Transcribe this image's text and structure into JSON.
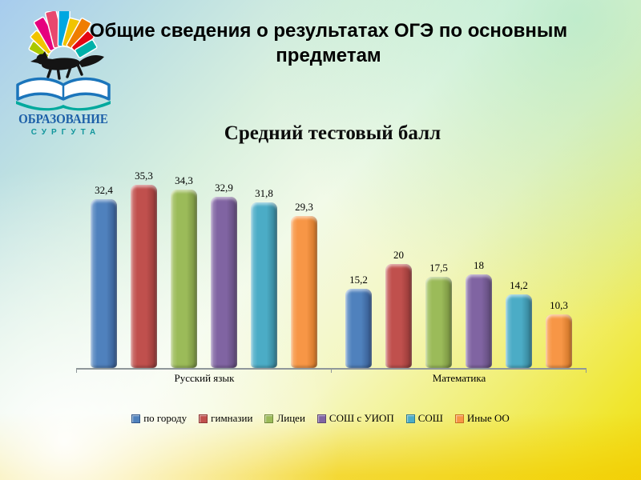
{
  "slide": {
    "title": "Общие сведения о результатах ОГЭ по основным предметам",
    "background_colors": {
      "top_left": "#a7ccee",
      "top_right": "#a9e0c4",
      "center": "#f2fae8",
      "bottom_right": "#f0da12",
      "bottom_left": "#fffdf0"
    }
  },
  "logo": {
    "name": "ОБРАЗОВАНИЕ",
    "subname": "СУРГУТА",
    "icon": "open-book-fox-and-book-fan-logo",
    "colors": {
      "name_text": "#1c5fa8",
      "subname_text": "#12969c",
      "open_book_stroke": "#1b75bb",
      "book_fan": [
        "#aac800",
        "#f1c400",
        "#e6007e",
        "#e8486e",
        "#00a7e0",
        "#f1c400",
        "#ef7d00",
        "#e30613",
        "#00b1a9"
      ]
    }
  },
  "chart_data": {
    "type": "bar",
    "title": "Средний тестовый балл",
    "categories": [
      "Русский язык",
      "Математика"
    ],
    "series": [
      {
        "name": "по городу",
        "color": "#4f81bd",
        "color_light": "#85aad3",
        "color_dark": "#33568a",
        "values": [
          32.4,
          15.2
        ],
        "labels": [
          "32,4",
          "15,2"
        ]
      },
      {
        "name": "гимназии",
        "color": "#c0504d",
        "color_light": "#d3827f",
        "color_dark": "#8d3634",
        "values": [
          35.3,
          20
        ],
        "labels": [
          "35,3",
          "20"
        ]
      },
      {
        "name": "Лицеи",
        "color": "#9bbb59",
        "color_light": "#b8cf86",
        "color_dark": "#71893c",
        "values": [
          34.3,
          17.5
        ],
        "labels": [
          "34,3",
          "17,5"
        ]
      },
      {
        "name": "СОШ с УИОП",
        "color": "#8064a2",
        "color_light": "#a38fbc",
        "color_dark": "#5c4775",
        "values": [
          32.9,
          18
        ],
        "labels": [
          "32,9",
          "18"
        ]
      },
      {
        "name": "СОШ",
        "color": "#4bacc6",
        "color_light": "#7fc5d8",
        "color_dark": "#31798d",
        "values": [
          31.8,
          14.2
        ],
        "labels": [
          "31,8",
          "14,2"
        ]
      },
      {
        "name": "Иные ОО",
        "color": "#f79646",
        "color_light": "#fab274",
        "color_dark": "#c76f22",
        "values": [
          29.3,
          10.3
        ],
        "labels": [
          "29,3",
          "10,3"
        ]
      }
    ],
    "ylim": [
      0,
      36
    ],
    "gridlines": false,
    "value_axis_visible": false,
    "legend_position": "bottom",
    "value_decimal_separator": ","
  }
}
